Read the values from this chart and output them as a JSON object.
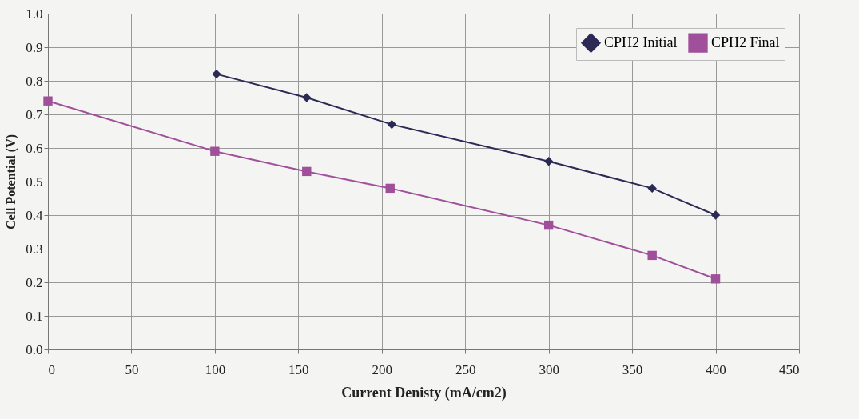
{
  "chart_data": {
    "type": "line",
    "xlabel": "Current Denisty (mA/cm2)",
    "ylabel": "Cell Potential (V)",
    "xlim": [
      0,
      450
    ],
    "xticks": [
      0,
      50,
      100,
      150,
      200,
      250,
      300,
      350,
      400,
      450
    ],
    "ylim": [
      0,
      1
    ],
    "yticks": [
      {
        "value": 0,
        "label": "0.0"
      },
      {
        "value": 0.1,
        "label": "0.1"
      },
      {
        "value": 0.2,
        "label": "0.2"
      },
      {
        "value": 0.3,
        "label": "0.3"
      },
      {
        "value": 0.4,
        "label": "0.4"
      },
      {
        "value": 0.5,
        "label": "0.5"
      },
      {
        "value": 0.6,
        "label": "0.6"
      },
      {
        "value": 0.7,
        "label": "0.7"
      },
      {
        "value": 0.8,
        "label": "0.8"
      },
      {
        "value": 0.9,
        "label": "0.9"
      },
      {
        "value": 1,
        "label": "1.0"
      }
    ],
    "grid": true,
    "legend": "top right",
    "series": [
      {
        "name": "CPH2 Initial",
        "color": "#2b2a55",
        "marker": "diamond",
        "x": [
          101,
          155,
          206,
          300,
          362,
          400
        ],
        "values": [
          0.82,
          0.75,
          0.67,
          0.56,
          0.48,
          0.4
        ]
      },
      {
        "name": "CPH2 Final",
        "color": "#a0509a",
        "marker": "square",
        "x": [
          0,
          100,
          155,
          205,
          300,
          362,
          400
        ],
        "values": [
          0.74,
          0.59,
          0.53,
          0.48,
          0.37,
          0.28,
          0.21
        ]
      }
    ]
  }
}
